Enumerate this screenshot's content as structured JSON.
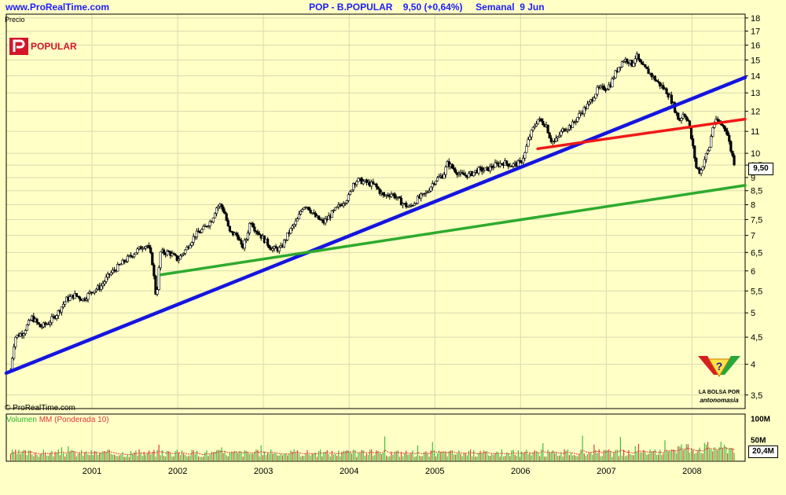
{
  "header": {
    "site": "www.ProRealTime.com",
    "title": "POP - B.POPULAR    9,50 (+0,64%)     Semanal  9 Jun"
  },
  "logo": {
    "text": "POPULAR"
  },
  "price_label": "Precio",
  "copyright": "© ProRealTime.com",
  "volume_label": {
    "a": "Volumen ",
    "b": "MM (Ponderada 10)"
  },
  "price_badge": "9,50",
  "volume_badge": "20,4M",
  "corner_logo": {
    "line1": "LA BOLSA POR",
    "line2": "antonomasia"
  },
  "colors": {
    "bg": "#FFFFC6",
    "blue": "#1515E0",
    "green": "#2EAA2E",
    "red": "#F01818",
    "grid": "#D9D9B0",
    "vol_up": "#3DBE3D",
    "vol_down": "#E03C3C"
  },
  "chart_data": {
    "type": "line",
    "subtype": "candlestick-weekly",
    "title": "POP - B.POPULAR 9,50 (+0,64%) Semanal 9 Jun",
    "ylabel": "Precio",
    "y_scale": "log",
    "ylim": [
      3.3,
      18.3
    ],
    "y_ticks": [
      "3,5",
      "4",
      "4,5",
      "5",
      "5,5",
      "6",
      "6,5",
      "7",
      "7,5",
      "8",
      "8,5",
      "9",
      "9,5",
      "10",
      "11",
      "12",
      "13",
      "14",
      "15",
      "16",
      "17",
      "18"
    ],
    "x_ticks": [
      "2001",
      "2002",
      "2003",
      "2004",
      "2005",
      "2006",
      "2007",
      "2008"
    ],
    "xlim": [
      2000.0,
      2008.62
    ],
    "price_series": [
      [
        2000.05,
        3.9
      ],
      [
        2000.1,
        4.5
      ],
      [
        2000.2,
        4.6
      ],
      [
        2000.3,
        4.9
      ],
      [
        2000.4,
        4.7
      ],
      [
        2000.5,
        4.8
      ],
      [
        2000.6,
        5.0
      ],
      [
        2000.7,
        5.3
      ],
      [
        2000.8,
        5.4
      ],
      [
        2000.9,
        5.3
      ],
      [
        2001.0,
        5.5
      ],
      [
        2001.1,
        5.6
      ],
      [
        2001.2,
        5.9
      ],
      [
        2001.3,
        6.1
      ],
      [
        2001.4,
        6.3
      ],
      [
        2001.5,
        6.5
      ],
      [
        2001.6,
        6.7
      ],
      [
        2001.65,
        6.7
      ],
      [
        2001.7,
        6.3
      ],
      [
        2001.75,
        5.3
      ],
      [
        2001.8,
        6.5
      ],
      [
        2001.9,
        6.5
      ],
      [
        2002.0,
        6.3
      ],
      [
        2002.1,
        6.6
      ],
      [
        2002.2,
        7.0
      ],
      [
        2002.3,
        7.2
      ],
      [
        2002.4,
        7.5
      ],
      [
        2002.45,
        7.9
      ],
      [
        2002.5,
        8.0
      ],
      [
        2002.55,
        7.7
      ],
      [
        2002.6,
        7.1
      ],
      [
        2002.7,
        7.0
      ],
      [
        2002.75,
        6.6
      ],
      [
        2002.8,
        6.9
      ],
      [
        2002.85,
        7.5
      ],
      [
        2002.9,
        7.2
      ],
      [
        2003.0,
        6.9
      ],
      [
        2003.1,
        6.6
      ],
      [
        2003.2,
        6.6
      ],
      [
        2003.3,
        7.1
      ],
      [
        2003.4,
        7.5
      ],
      [
        2003.45,
        7.9
      ],
      [
        2003.5,
        8.0
      ],
      [
        2003.55,
        7.8
      ],
      [
        2003.6,
        7.6
      ],
      [
        2003.7,
        7.4
      ],
      [
        2003.8,
        7.7
      ],
      [
        2003.9,
        8.0
      ],
      [
        2004.0,
        8.3
      ],
      [
        2004.05,
        8.8
      ],
      [
        2004.1,
        8.9
      ],
      [
        2004.2,
        8.8
      ],
      [
        2004.3,
        8.7
      ],
      [
        2004.35,
        8.5
      ],
      [
        2004.4,
        8.3
      ],
      [
        2004.5,
        8.4
      ],
      [
        2004.6,
        8.1
      ],
      [
        2004.7,
        7.9
      ],
      [
        2004.8,
        8.2
      ],
      [
        2004.9,
        8.4
      ],
      [
        2005.0,
        8.9
      ],
      [
        2005.1,
        9.1
      ],
      [
        2005.15,
        9.6
      ],
      [
        2005.2,
        9.4
      ],
      [
        2005.3,
        9.1
      ],
      [
        2005.4,
        9.1
      ],
      [
        2005.5,
        9.3
      ],
      [
        2005.6,
        9.3
      ],
      [
        2005.7,
        9.5
      ],
      [
        2005.8,
        9.6
      ],
      [
        2005.9,
        9.5
      ],
      [
        2006.0,
        9.6
      ],
      [
        2006.05,
        10.0
      ],
      [
        2006.1,
        10.7
      ],
      [
        2006.2,
        11.6
      ],
      [
        2006.3,
        11.3
      ],
      [
        2006.35,
        10.6
      ],
      [
        2006.4,
        10.5
      ],
      [
        2006.5,
        11.1
      ],
      [
        2006.6,
        11.3
      ],
      [
        2006.7,
        11.9
      ],
      [
        2006.8,
        12.4
      ],
      [
        2006.9,
        13.2
      ],
      [
        2007.0,
        13.3
      ],
      [
        2007.05,
        13.5
      ],
      [
        2007.1,
        14.1
      ],
      [
        2007.15,
        14.6
      ],
      [
        2007.2,
        15.0
      ],
      [
        2007.25,
        15.0
      ],
      [
        2007.3,
        14.7
      ],
      [
        2007.35,
        15.3
      ],
      [
        2007.4,
        14.7
      ],
      [
        2007.5,
        14.2
      ],
      [
        2007.6,
        13.6
      ],
      [
        2007.7,
        13.1
      ],
      [
        2007.75,
        12.7
      ],
      [
        2007.8,
        12.1
      ],
      [
        2007.85,
        11.5
      ],
      [
        2007.9,
        11.9
      ],
      [
        2007.95,
        11.6
      ],
      [
        2008.0,
        10.5
      ],
      [
        2008.05,
        9.4
      ],
      [
        2008.1,
        9.2
      ],
      [
        2008.15,
        9.8
      ],
      [
        2008.2,
        10.2
      ],
      [
        2008.25,
        11.4
      ],
      [
        2008.3,
        11.5
      ],
      [
        2008.35,
        11.3
      ],
      [
        2008.4,
        11.1
      ],
      [
        2008.45,
        10.2
      ],
      [
        2008.5,
        9.5
      ]
    ],
    "trendlines": [
      {
        "color": "blue",
        "from": [
          2000.0,
          3.85
        ],
        "to": [
          2008.62,
          13.9
        ]
      },
      {
        "color": "green",
        "from": [
          2001.8,
          5.9
        ],
        "to": [
          2008.62,
          8.7
        ]
      },
      {
        "color": "red",
        "from": [
          2006.2,
          10.2
        ],
        "to": [
          2008.62,
          11.6
        ]
      }
    ],
    "volume": {
      "label": "Volumen MM (Ponderada 10)",
      "ticks": [
        "100M",
        "50M"
      ],
      "last": "20,4M"
    }
  }
}
